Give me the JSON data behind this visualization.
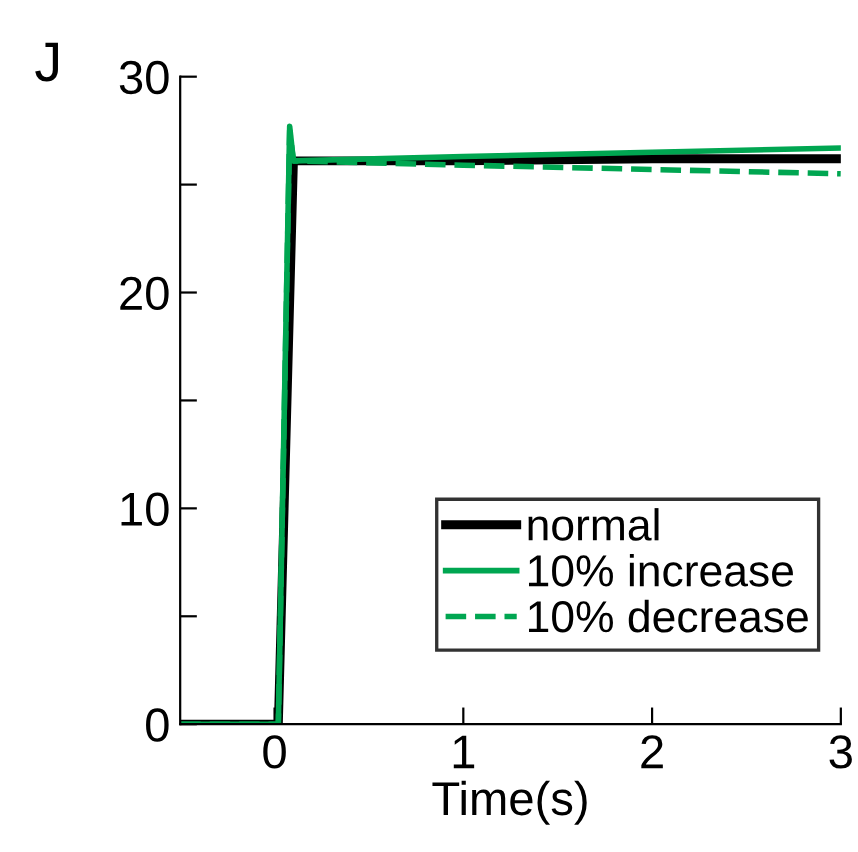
{
  "chart_data": {
    "type": "line",
    "xlabel": "Time(s)",
    "annotations": [
      "J"
    ],
    "xlim": [
      -0.5,
      3
    ],
    "xticks": [
      0,
      1,
      2,
      3
    ],
    "ylim": [
      0,
      30
    ],
    "yticks": [
      0,
      {
        "value": 5,
        "label": null
      },
      10,
      {
        "value": 15,
        "label": null
      },
      20,
      {
        "value": 25,
        "label": null
      },
      30
    ],
    "grid": false,
    "legend": "bottom right",
    "marker": "none",
    "series": [
      {
        "name": "normal",
        "color": "#000000",
        "line_style": "solid",
        "x": [
          -0.5,
          0.02,
          0.1,
          1,
          2,
          3
        ],
        "values": [
          0,
          0,
          26.1,
          26.1,
          26.2,
          26.2
        ]
      },
      {
        "name": "10% increase",
        "color": "#00a651",
        "line_style": "solid",
        "x": [
          -0.5,
          0.02,
          0.08,
          0.1,
          1,
          2,
          3
        ],
        "values": [
          0,
          0,
          27.7,
          26.1,
          26.3,
          26.5,
          26.7
        ]
      },
      {
        "name": "10% decrease",
        "color": "#00a651",
        "line_style": "dashed",
        "x": [
          -0.5,
          0.02,
          0.08,
          0.1,
          1,
          2,
          3
        ],
        "values": [
          0,
          0,
          27.5,
          26.1,
          25.9,
          25.7,
          25.5
        ]
      }
    ]
  }
}
